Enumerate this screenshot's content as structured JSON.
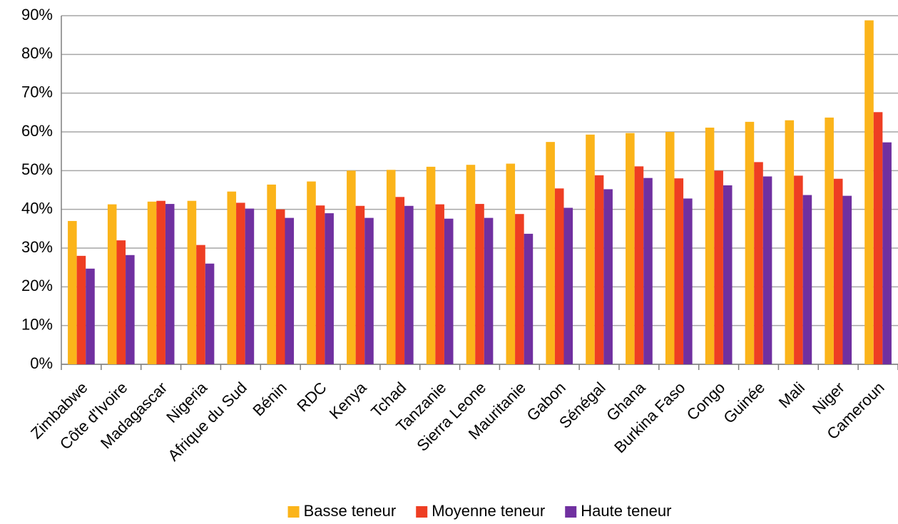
{
  "chart_data": {
    "type": "bar",
    "categories": [
      "Zimbabwe",
      "Côte d'Ivoire",
      "Madagascar",
      "Nigeria",
      "Afrique du Sud",
      "Bénin",
      "RDC",
      "Kenya",
      "Tchad",
      "Tanzanie",
      "Sierra Leone",
      "Mauritanie",
      "Gabon",
      "Sénégal",
      "Ghana",
      "Burkina Faso",
      "Congo",
      "Guinée",
      "Mali",
      "Niger",
      "Cameroun"
    ],
    "series": [
      {
        "name": "Basse teneur",
        "color": "#fbb41a",
        "values": [
          37,
          41.3,
          42,
          42.2,
          44.6,
          46.4,
          47.2,
          50,
          50.2,
          51,
          51.5,
          51.8,
          57.4,
          59.3,
          59.7,
          60,
          61.1,
          62.6,
          63,
          63.7,
          88.8
        ]
      },
      {
        "name": "Moyenne teneur",
        "color": "#ee3e23",
        "values": [
          28,
          32,
          42.2,
          30.8,
          41.7,
          40,
          41,
          40.9,
          43.2,
          41.3,
          41.4,
          38.8,
          45.4,
          48.8,
          51.1,
          48,
          50,
          52.2,
          48.7,
          47.9,
          65.1
        ]
      },
      {
        "name": "Haute teneur",
        "color": "#7030a0",
        "values": [
          24.7,
          28.2,
          41.4,
          26,
          40.2,
          37.8,
          39,
          37.8,
          40.9,
          37.6,
          37.8,
          33.7,
          40.4,
          45.2,
          48.1,
          42.8,
          46.2,
          48.5,
          43.7,
          43.5,
          57.3
        ]
      }
    ],
    "ylim": [
      0,
      90
    ],
    "yticks": [
      {
        "value": 0,
        "label": "0%"
      },
      {
        "value": 10,
        "label": "10%"
      },
      {
        "value": 20,
        "label": "20%"
      },
      {
        "value": 30,
        "label": "30%"
      },
      {
        "value": 40,
        "label": "40%"
      },
      {
        "value": 50,
        "label": "50%"
      },
      {
        "value": 60,
        "label": "60%"
      },
      {
        "value": 70,
        "label": "70%"
      },
      {
        "value": 80,
        "label": "80%"
      },
      {
        "value": 90,
        "label": "90%"
      }
    ],
    "grid": true,
    "legend": "bottom"
  }
}
